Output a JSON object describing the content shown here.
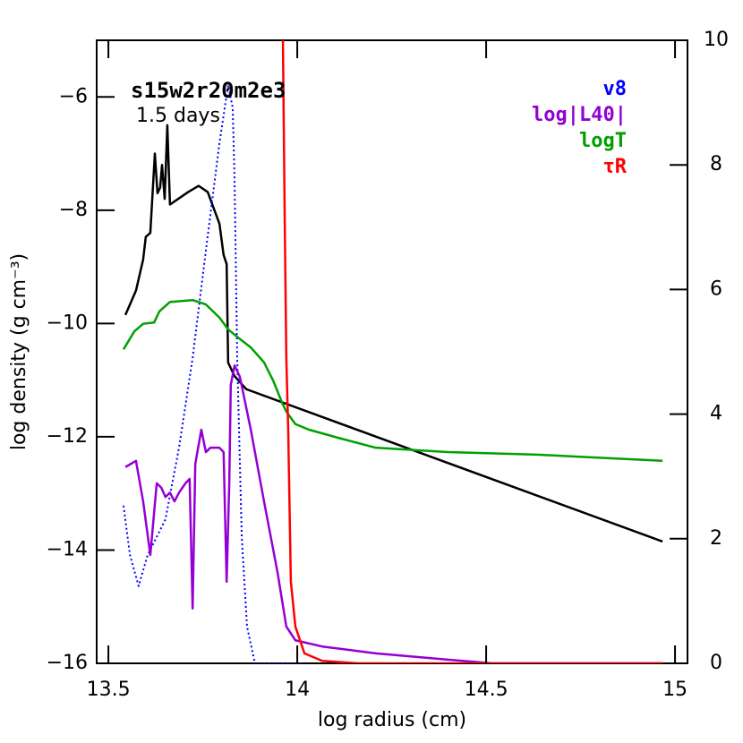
{
  "chart_data": {
    "type": "line",
    "title": "s15w2r20m2e3",
    "subtitle": "1.5 days",
    "xlabel": "log radius (cm)",
    "ylabel": "log density (g cm⁻³)",
    "xlim": [
      13.469,
      15.033
    ],
    "ylim": [
      -16,
      -5
    ],
    "y2lim": [
      0,
      10
    ],
    "xticks": [
      13.5,
      14,
      14.5,
      15
    ],
    "yticks": [
      {
        "value": -16,
        "label": "−16"
      },
      {
        "value": -14,
        "label": "−14"
      },
      {
        "value": -12,
        "label": "−12"
      },
      {
        "value": -10,
        "label": "−10"
      },
      {
        "value": -8,
        "label": "−8"
      },
      {
        "value": -6,
        "label": "−6"
      }
    ],
    "y2ticks": [
      0,
      2,
      4,
      6,
      8,
      10
    ],
    "series": [
      {
        "name": "density",
        "color": "#000000",
        "axis": "y",
        "style": "solid",
        "in_legend": false,
        "x": [
          13.545,
          13.573,
          13.592,
          13.599,
          13.611,
          13.623,
          13.63,
          13.637,
          13.642,
          13.649,
          13.656,
          13.663,
          13.711,
          13.739,
          13.763,
          13.794,
          13.805,
          13.813,
          13.817,
          13.834,
          13.865,
          14.967
        ],
        "values": [
          -9.85,
          -9.42,
          -8.87,
          -8.47,
          -8.4,
          -7.0,
          -7.7,
          -7.6,
          -7.2,
          -7.8,
          -6.5,
          -7.9,
          -7.68,
          -7.57,
          -7.68,
          -8.24,
          -8.79,
          -8.95,
          -10.69,
          -10.93,
          -11.16,
          -13.85
        ]
      },
      {
        "name": "v8",
        "color": "#0000ff",
        "axis": "y2",
        "style": "dotted",
        "in_legend": true,
        "x": [
          13.54,
          13.557,
          13.58,
          13.604,
          13.628,
          13.651,
          13.687,
          13.723,
          13.758,
          13.794,
          13.817,
          13.829,
          13.834,
          13.841,
          13.853,
          13.867,
          13.888,
          14.019
        ],
        "values": [
          2.53,
          1.74,
          1.24,
          1.74,
          2.03,
          2.31,
          3.46,
          4.9,
          6.62,
          8.35,
          9.28,
          8.92,
          7.77,
          4.9,
          2.03,
          0.59,
          0,
          0
        ]
      },
      {
        "name": "log|L40|",
        "color": "#9400d3",
        "axis": "y2",
        "style": "solid",
        "in_legend": true,
        "x": [
          13.545,
          13.573,
          13.592,
          13.611,
          13.628,
          13.64,
          13.651,
          13.663,
          13.675,
          13.687,
          13.704,
          13.715,
          13.723,
          13.73,
          13.746,
          13.758,
          13.77,
          13.794,
          13.805,
          13.813,
          13.82,
          13.824,
          13.834,
          13.848,
          13.877,
          13.912,
          13.948,
          13.971,
          13.995,
          14.066,
          14.208,
          14.398,
          14.516,
          14.967
        ],
        "values": [
          3.15,
          3.25,
          2.6,
          1.74,
          2.89,
          2.82,
          2.67,
          2.74,
          2.6,
          2.74,
          2.89,
          2.96,
          0.88,
          3.2,
          3.75,
          3.39,
          3.46,
          3.46,
          3.39,
          1.31,
          2.89,
          4.47,
          4.78,
          4.6,
          3.75,
          2.6,
          1.45,
          0.59,
          0.37,
          0.27,
          0.16,
          0.06,
          0,
          0
        ]
      },
      {
        "name": "logT",
        "color": "#00a000",
        "axis": "y2",
        "style": "solid",
        "in_legend": true,
        "x": [
          13.54,
          13.569,
          13.592,
          13.621,
          13.635,
          13.663,
          13.723,
          13.758,
          13.794,
          13.817,
          13.841,
          13.877,
          13.912,
          13.936,
          13.96,
          13.971,
          13.995,
          14.031,
          14.114,
          14.208,
          14.398,
          14.635,
          14.967
        ],
        "values": [
          5.04,
          5.33,
          5.45,
          5.47,
          5.65,
          5.8,
          5.83,
          5.76,
          5.55,
          5.36,
          5.24,
          5.07,
          4.83,
          4.54,
          4.18,
          4.04,
          3.84,
          3.75,
          3.61,
          3.46,
          3.39,
          3.35,
          3.25
        ]
      },
      {
        "name": "τR",
        "color": "#ff0000",
        "axis": "y2",
        "style": "solid",
        "in_legend": true,
        "x": [
          13.962,
          13.967,
          13.971,
          13.976,
          13.983,
          13.995,
          14.019,
          14.066,
          14.161,
          14.967
        ],
        "values": [
          10,
          7.0,
          4.9,
          3.75,
          1.31,
          0.59,
          0.16,
          0.04,
          0,
          0
        ]
      }
    ]
  }
}
